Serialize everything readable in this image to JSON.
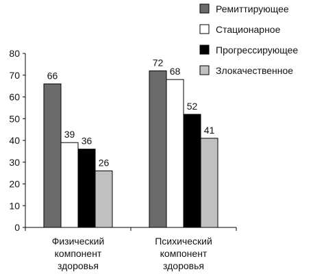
{
  "chart_data": {
    "type": "bar",
    "title": "",
    "xlabel": "",
    "ylabel": "",
    "ylim": [
      0,
      80
    ],
    "yticks": [
      0,
      10,
      20,
      30,
      40,
      50,
      60,
      70,
      80
    ],
    "grid": false,
    "legend_position": "top-right",
    "categories": [
      [
        "Физический",
        "компонент",
        "здоровья"
      ],
      [
        "Психический",
        "компонент",
        "здоровья"
      ]
    ],
    "series": [
      {
        "name": "Ремиттирующее",
        "color": "#6b6b6b",
        "values": [
          66,
          72
        ]
      },
      {
        "name": "Стационарное",
        "color": "#ffffff",
        "values": [
          39,
          68
        ]
      },
      {
        "name": "Прогрессирующее",
        "color": "#000000",
        "values": [
          36,
          52
        ]
      },
      {
        "name": "Злокачественное",
        "color": "#c0c0c0",
        "values": [
          26,
          41
        ]
      }
    ]
  }
}
